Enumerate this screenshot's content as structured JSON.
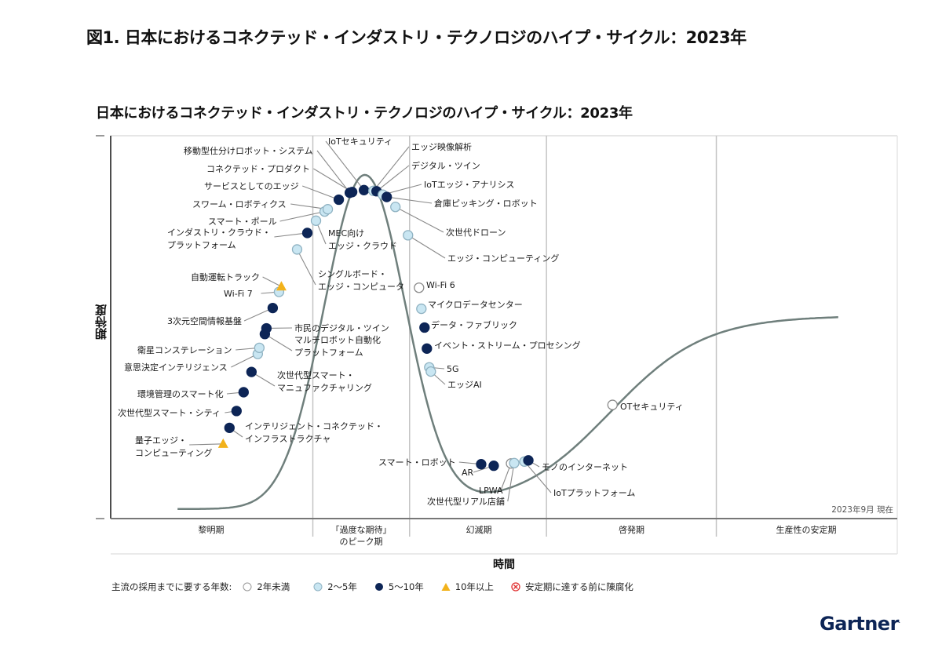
{
  "figure_title": "図1. 日本におけるコネクテッド・インダストリ・テクノロジのハイプ・サイクル：2023年",
  "brand": "Gartner",
  "chart_data": {
    "type": "scatter",
    "subtype": "hype-cycle",
    "title": "日本におけるコネクテッド・インダストリ・テクノロジのハイプ・サイクル：2023年",
    "xlabel": "時間",
    "ylabel": "期待度",
    "as_of": "2023年9月 現在",
    "grid": false,
    "legend_position": "bottom-left",
    "x_range": [
      0,
      100
    ],
    "y_range": [
      0,
      100
    ],
    "phases": [
      {
        "name": "黎明期",
        "x_start": 0,
        "x_end": 25.7
      },
      {
        "name": "「過度な期待」のピーク期",
        "line1": "「過度な期待」",
        "line2": "のピーク期",
        "x_start": 25.7,
        "x_end": 38
      },
      {
        "name": "幻滅期",
        "x_start": 38,
        "x_end": 55.4
      },
      {
        "name": "啓発期",
        "x_start": 55.4,
        "x_end": 77
      },
      {
        "name": "生産性の安定期",
        "x_start": 77,
        "x_end": 100
      }
    ],
    "legend": {
      "title": "主流の採用までに要する年数:",
      "items": [
        {
          "key": "lt2",
          "label": "2年未満",
          "color": "#ffffff"
        },
        {
          "key": "2to5",
          "label": "2〜5年",
          "color": "#c9e6f2"
        },
        {
          "key": "5to10",
          "label": "5〜10年",
          "color": "#0d2556"
        },
        {
          "key": "gt10",
          "label": "10年以上",
          "color": "#f2b21b"
        },
        {
          "key": "obsolete",
          "label": "安定期に達する前に陳腐化",
          "color": "#e03030"
        }
      ]
    },
    "points": [
      {
        "label": "量子エッジ・コンピューティング",
        "x": 14.3,
        "y": 19.5,
        "cat": "gt10"
      },
      {
        "label": "インテリジェント・コネクテッド・インフラストラクチャ",
        "x": 15.1,
        "y": 23.7,
        "cat": "5to10"
      },
      {
        "label": "次世代型スマート・シティ",
        "x": 16.0,
        "y": 28.1,
        "cat": "5to10"
      },
      {
        "label": "環境管理のスマート化",
        "x": 16.9,
        "y": 33.0,
        "cat": "5to10"
      },
      {
        "label": "次世代型スマート・マニュファクチャリング",
        "x": 17.9,
        "y": 38.3,
        "cat": "5to10"
      },
      {
        "label": "意思決定インテリジェンス",
        "x": 18.7,
        "y": 43.0,
        "cat": "2to5"
      },
      {
        "label": "衛星コンステレーション",
        "x": 18.9,
        "y": 44.6,
        "cat": "2to5"
      },
      {
        "label": "マルチロボット自動化プラットフォーム",
        "x": 19.6,
        "y": 48.2,
        "cat": "5to10"
      },
      {
        "label": "市民のデジタル・ツイン",
        "x": 19.8,
        "y": 49.7,
        "cat": "5to10"
      },
      {
        "label": "3次元空間情報基盤",
        "x": 20.6,
        "y": 55.0,
        "cat": "5to10"
      },
      {
        "label": "Wi-Fi 7",
        "x": 21.4,
        "y": 59.2,
        "cat": "2to5"
      },
      {
        "label": "自動運転トラック",
        "x": 21.7,
        "y": 60.6,
        "cat": "gt10"
      },
      {
        "label": "シングルボード・エッジ・コンピュータ",
        "x": 23.7,
        "y": 70.3,
        "cat": "2to5"
      },
      {
        "label": "インダストリ・クラウド・プラットフォーム",
        "x": 25.0,
        "y": 74.6,
        "cat": "5to10"
      },
      {
        "label": "MEC向けエッジ・クラウド",
        "x": 26.1,
        "y": 77.8,
        "cat": "2to5"
      },
      {
        "label": "スマート・ポール",
        "x": 27.2,
        "y": 80.2,
        "cat": "2to5"
      },
      {
        "label": "スワーム・ロボティクス",
        "x": 27.6,
        "y": 80.8,
        "cat": "2to5"
      },
      {
        "label": "サービスとしてのエッジ",
        "x": 29.0,
        "y": 83.3,
        "cat": "5to10"
      },
      {
        "label": "移動型仕分けロボット・システム",
        "x": 30.4,
        "y": 85.1,
        "cat": "5to10"
      },
      {
        "label": "コネクテッド・プロダクト",
        "x": 30.7,
        "y": 85.3,
        "cat": "5to10"
      },
      {
        "label": "IoTセキュリティ",
        "x": 32.2,
        "y": 85.8,
        "cat": "5to10"
      },
      {
        "label": "エッジ映像解析",
        "x": 33.4,
        "y": 85.6,
        "cat": "2to5"
      },
      {
        "label": "デジタル・ツイン",
        "x": 33.8,
        "y": 85.5,
        "cat": "5to10"
      },
      {
        "label": "IoTエッジ・アナリシス",
        "x": 34.6,
        "y": 84.6,
        "cat": "2to5"
      },
      {
        "label": "倉庫ピッキング・ロボット",
        "x": 35.1,
        "y": 84.0,
        "cat": "5to10"
      },
      {
        "label": "次世代ドローン",
        "x": 36.2,
        "y": 81.4,
        "cat": "2to5"
      },
      {
        "label": "エッジ・コンピューティング",
        "x": 37.8,
        "y": 74.0,
        "cat": "2to5"
      },
      {
        "label": "Wi-Fi 6",
        "x": 39.2,
        "y": 60.3,
        "cat": "lt2"
      },
      {
        "label": "マイクロデータセンター",
        "x": 39.5,
        "y": 54.8,
        "cat": "2to5"
      },
      {
        "label": "データ・ファブリック",
        "x": 39.9,
        "y": 49.9,
        "cat": "5to10"
      },
      {
        "label": "イベント・ストリーム・プロセシング",
        "x": 40.2,
        "y": 44.4,
        "cat": "5to10"
      },
      {
        "label": "5G",
        "x": 40.5,
        "y": 39.5,
        "cat": "2to5"
      },
      {
        "label": "エッジAI",
        "x": 40.7,
        "y": 38.4,
        "cat": "2to5"
      },
      {
        "label": "スマート・ロボット",
        "x": 47.1,
        "y": 14.2,
        "cat": "5to10"
      },
      {
        "label": "AR",
        "x": 48.7,
        "y": 13.8,
        "cat": "5to10"
      },
      {
        "label": "LPWA",
        "x": 50.9,
        "y": 14.4,
        "cat": "lt2"
      },
      {
        "label": "次世代型リアル店舗",
        "x": 51.3,
        "y": 14.5,
        "cat": "2to5"
      },
      {
        "label": "IoTプラットフォーム",
        "x": 52.6,
        "y": 14.9,
        "cat": "2to5"
      },
      {
        "label": "モノのインターネット",
        "x": 53.1,
        "y": 15.2,
        "cat": "5to10"
      },
      {
        "label": "OTセキュリティ",
        "x": 63.8,
        "y": 29.7,
        "cat": "lt2"
      }
    ]
  }
}
